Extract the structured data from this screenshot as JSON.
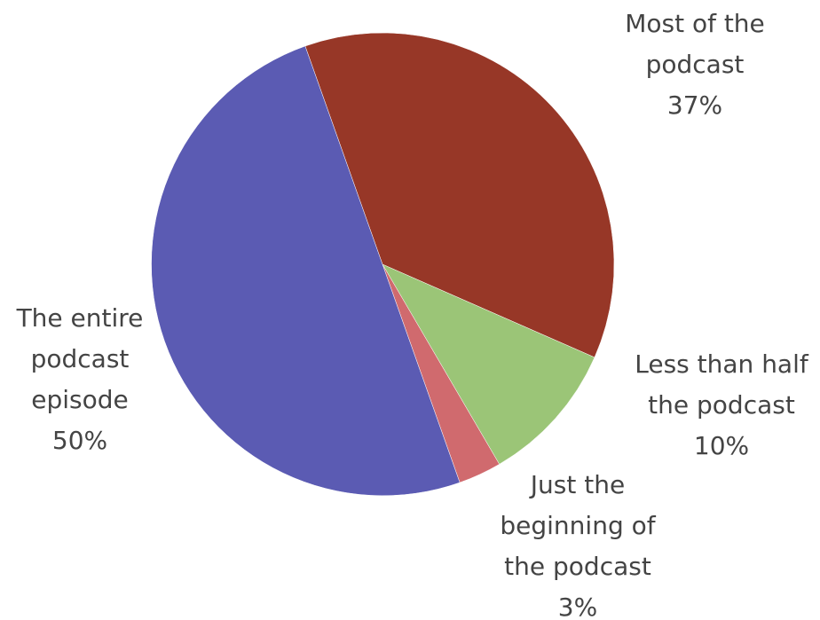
{
  "chart_data": {
    "type": "pie",
    "title": "",
    "slices": [
      {
        "label_lines": [
          "Most of the",
          "podcast"
        ],
        "value": 37,
        "value_label": "37%",
        "color": "#973727"
      },
      {
        "label_lines": [
          "Less than half",
          "the podcast"
        ],
        "value": 10,
        "value_label": "10%",
        "color": "#9BC577"
      },
      {
        "label_lines": [
          "Just the",
          "beginning of",
          "the podcast"
        ],
        "value": 3,
        "value_label": "3%",
        "color": "#D06A6E"
      },
      {
        "label_lines": [
          "The entire",
          "podcast",
          "episode"
        ],
        "value": 50,
        "value_label": "50%",
        "color": "#5B5BB3"
      }
    ]
  }
}
